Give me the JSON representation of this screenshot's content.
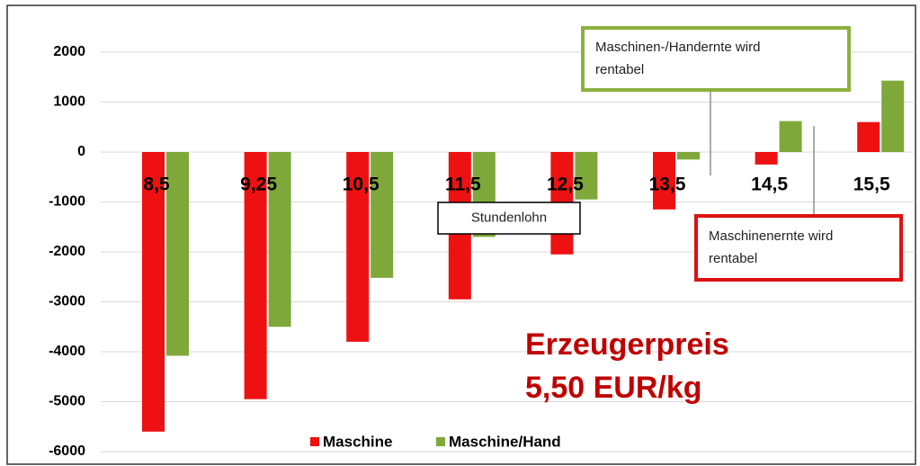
{
  "chart_data": {
    "type": "bar",
    "categories": [
      "8,5",
      "9,25",
      "10,5",
      "11,5",
      "12,5",
      "13,5",
      "14,5",
      "15,5"
    ],
    "series": [
      {
        "name": "Maschine",
        "color": "#ee1111",
        "values": [
          -5600,
          -4950,
          -3800,
          -2950,
          -2050,
          -1150,
          -250,
          600
        ]
      },
      {
        "name": "Maschine/Hand",
        "color": "#7ea83a",
        "values": [
          -4080,
          -3500,
          -2520,
          -1700,
          -950,
          -150,
          620,
          1430
        ]
      }
    ],
    "ylim": [
      -6000,
      2000
    ],
    "yticks": [
      -6000,
      -5000,
      -4000,
      -3000,
      -2000,
      -1000,
      0,
      1000,
      2000
    ],
    "grid": true,
    "legend": "bottom",
    "annotations": [
      {
        "lines": [
          "Stundenlohn"
        ],
        "border": "#000000"
      },
      {
        "lines": [
          "Maschinen-/Handernte wird",
          "rentabel"
        ],
        "border": "#8db040"
      },
      {
        "lines": [
          "Maschinenernte wird",
          "rentabel"
        ],
        "border": "#dd1111"
      },
      {
        "lines": [
          "Erzeugerpreis",
          "5,50 EUR/kg"
        ],
        "color": "#c00000"
      }
    ]
  }
}
